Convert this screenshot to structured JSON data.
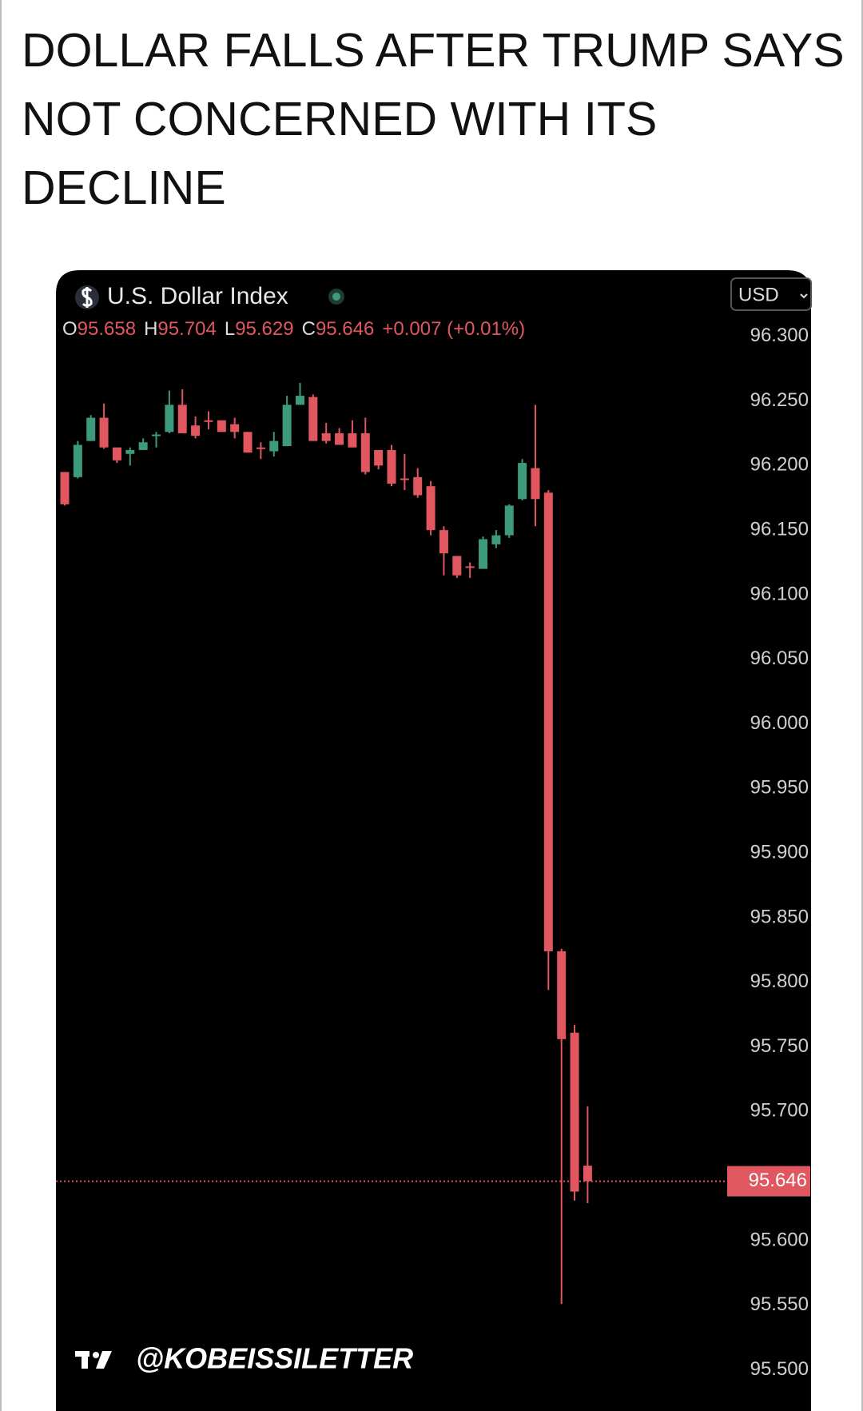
{
  "header": {
    "title": "DOLLAR FALLS AFTER TRUMP SAYS NOT CONCERNED WITH ITS DECLINE"
  },
  "chart_data": {
    "type": "candlestick",
    "title": "U.S. Dollar Index",
    "currency": "USD",
    "ohlc": [
      {
        "key": "O",
        "value": 95.658
      },
      {
        "key": "H",
        "value": 95.704
      },
      {
        "key": "L",
        "value": 95.629
      },
      {
        "key": "C",
        "value": 95.646
      }
    ],
    "change": "+0.007 (+0.01%)",
    "watermark": "@KOBEISSILETTER",
    "up_color": "#3d9a7c",
    "down_color": "#e05760",
    "categories": [
      null,
      null,
      null,
      null,
      null,
      null,
      null,
      null,
      null,
      null,
      null,
      null,
      null,
      null,
      null,
      null,
      null,
      null,
      null,
      null,
      null,
      null,
      null,
      null,
      null,
      null,
      null,
      null,
      null,
      null,
      null,
      null,
      null,
      null,
      null,
      null,
      null,
      null,
      null,
      null,
      null
    ],
    "open": [
      96.195,
      96.191,
      96.219,
      96.237,
      96.214,
      96.209,
      96.212,
      96.223,
      96.226,
      96.247,
      96.231,
      96.235,
      96.235,
      96.232,
      96.226,
      96.214,
      96.211,
      96.215,
      96.247,
      96.253,
      96.225,
      96.225,
      96.225,
      96.225,
      96.212,
      96.212,
      96.19,
      96.191,
      96.184,
      96.15,
      96.13,
      96.122,
      96.12,
      96.139,
      96.146,
      96.174,
      96.198,
      96.179,
      95.824,
      95.761,
      95.658
    ],
    "high": [
      96.195,
      96.219,
      96.239,
      96.248,
      96.214,
      96.214,
      96.221,
      96.226,
      96.258,
      96.259,
      96.238,
      96.242,
      96.235,
      96.237,
      96.226,
      96.218,
      96.226,
      96.254,
      96.264,
      96.255,
      96.233,
      96.229,
      96.235,
      96.237,
      96.212,
      96.216,
      96.209,
      96.198,
      96.188,
      96.153,
      96.13,
      96.125,
      96.145,
      96.15,
      96.17,
      96.205,
      96.247,
      96.181,
      95.826,
      95.767,
      95.704
    ],
    "low": [
      96.169,
      96.19,
      96.219,
      96.213,
      96.202,
      96.2,
      96.212,
      96.214,
      96.225,
      96.225,
      96.221,
      96.228,
      96.226,
      96.221,
      96.21,
      96.205,
      96.207,
      96.215,
      96.247,
      96.219,
      96.217,
      96.216,
      96.214,
      96.193,
      96.197,
      96.184,
      96.181,
      96.175,
      96.146,
      96.115,
      96.113,
      96.113,
      96.12,
      96.136,
      96.144,
      96.173,
      96.153,
      95.794,
      95.551,
      95.631,
      95.629
    ],
    "close": [
      96.17,
      96.216,
      96.237,
      96.214,
      96.204,
      96.212,
      96.218,
      96.224,
      96.247,
      96.225,
      96.223,
      96.235,
      96.226,
      96.226,
      96.21,
      96.214,
      96.219,
      96.247,
      96.254,
      96.219,
      96.219,
      96.216,
      96.214,
      96.195,
      96.2,
      96.186,
      96.19,
      96.177,
      96.15,
      96.132,
      96.115,
      96.122,
      96.143,
      96.146,
      96.169,
      96.202,
      96.174,
      95.824,
      95.756,
      95.638,
      95.646
    ],
    "ylim": [
      95.47,
      96.345
    ],
    "yticks": [
      {
        "value": 96.3,
        "label": "96.300"
      },
      {
        "value": 96.25,
        "label": "96.250"
      },
      {
        "value": 96.2,
        "label": "96.200"
      },
      {
        "value": 96.15,
        "label": "96.150"
      },
      {
        "value": 96.1,
        "label": "96.100"
      },
      {
        "value": 96.05,
        "label": "96.050"
      },
      {
        "value": 96.0,
        "label": "96.000"
      },
      {
        "value": 95.95,
        "label": "95.950"
      },
      {
        "value": 95.9,
        "label": "95.900"
      },
      {
        "value": 95.85,
        "label": "95.850"
      },
      {
        "value": 95.8,
        "label": "95.800"
      },
      {
        "value": 95.75,
        "label": "95.750"
      },
      {
        "value": 95.7,
        "label": "95.700"
      },
      {
        "value": 95.6,
        "label": "95.600"
      },
      {
        "value": 95.55,
        "label": "95.550"
      },
      {
        "value": 95.5,
        "label": "95.500"
      }
    ],
    "last_price": {
      "value": 95.646,
      "label": "95.646"
    }
  }
}
